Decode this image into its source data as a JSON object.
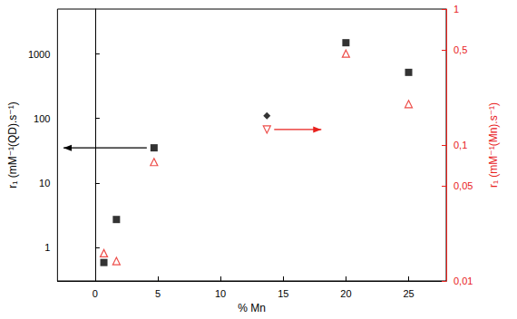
{
  "chart_data": {
    "type": "scatter",
    "log": "y",
    "grid": false,
    "x_label": "% Mn",
    "y_label": "r₁ (mM⁻¹(QD).s⁻¹)",
    "y2_label": "r₁ (mM⁻¹(Mn).s⁻¹)",
    "x": [
      0.7,
      1.7,
      4.7,
      13.7,
      20,
      25
    ],
    "xlim": [
      -3,
      28
    ],
    "xticks": [
      0,
      5,
      10,
      15,
      20,
      25
    ],
    "ylim": [
      0.3,
      5000
    ],
    "yticks": [
      1,
      10,
      100,
      1000
    ],
    "y2lim": [
      0.01,
      1
    ],
    "y2ticks": [
      {
        "value": 0.01,
        "label": "0,01"
      },
      {
        "value": 0.05,
        "label": "0,05"
      },
      {
        "value": 0.1,
        "label": "0,1"
      },
      {
        "value": 0.5,
        "label": "0,5"
      },
      1
    ],
    "series": [
      {
        "color": "#000000",
        "marker": "square",
        "values": [
          0.58,
          2.7,
          35,
          null,
          1500,
          520
        ]
      },
      {
        "color": "#000000",
        "marker": "diamond",
        "values": [
          null,
          null,
          null,
          110,
          null,
          null
        ]
      },
      {
        "color": "#e8201c",
        "marker": "triangle-open",
        "axis": "y2",
        "values": [
          0.016,
          0.014,
          0.075,
          null,
          0.47,
          0.2
        ]
      },
      {
        "color": "#e8201c",
        "marker": "triangle-down-open",
        "axis": "y2",
        "values": [
          null,
          null,
          null,
          0.13,
          null,
          null
        ]
      }
    ]
  }
}
